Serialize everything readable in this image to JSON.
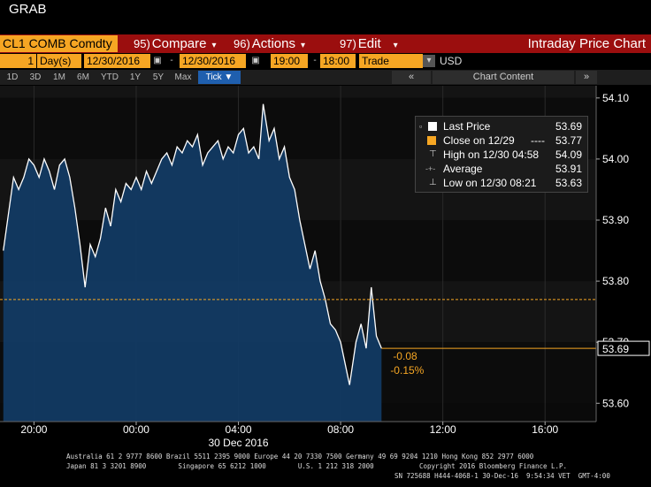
{
  "header": {
    "grab_label": "GRAB"
  },
  "toolbar": {
    "security": "CL1 COMB Comdty",
    "compare_num": "95)",
    "compare_label": "Compare",
    "actions_num": "96)",
    "actions_label": "Actions",
    "edit_num": "97)",
    "edit_label": "Edit",
    "title": "Intraday Price Chart"
  },
  "settings": {
    "period_value": "1",
    "period_unit": "Day(s)",
    "start_date": "12/30/2016",
    "end_date": "12/30/2016",
    "start_time": "19:00",
    "end_time": "18:00",
    "event": "Trade",
    "currency": "USD"
  },
  "ranges": {
    "items": [
      "1D",
      "3D",
      "1M",
      "6M",
      "YTD",
      "1Y",
      "5Y",
      "Max",
      "Tick ▼"
    ],
    "selected": "Tick ▼",
    "collapse_left": "«",
    "collapse_right": "»",
    "chart_content": "Chart Content"
  },
  "legend": {
    "last_price": {
      "label": "Last Price",
      "value": "53.69"
    },
    "close": {
      "label": "Close on 12/29",
      "dashes": "----",
      "value": "53.77"
    },
    "high": {
      "label": "High on 12/30 04:58",
      "value": "54.09"
    },
    "average": {
      "label": "Average",
      "value": "53.91"
    },
    "low": {
      "label": "Low on 12/30 08:21",
      "value": "53.63"
    }
  },
  "annotations": {
    "change": "-0.08",
    "change_pct": "-0.15%",
    "last_tag": "53.69"
  },
  "colors": {
    "accent_orange": "#f6a623",
    "toolbar_red": "#9b0e0e",
    "area_fill": "#123a63",
    "line": "#ffffff",
    "close_line": "#f6a623"
  },
  "chart_data": {
    "type": "area",
    "title": "Intraday Price Chart",
    "x_axis_date": "30 Dec 2016",
    "x_tick_labels": [
      "20:00",
      "00:00",
      "04:00",
      "08:00",
      "12:00",
      "16:00"
    ],
    "y_tick_labels": [
      "54.10",
      "54.00",
      "53.90",
      "53.80",
      "53.70",
      "53.60"
    ],
    "ylim": [
      53.57,
      54.12
    ],
    "x_range_hours": [
      -5.33,
      18.0
    ],
    "previous_close": 53.77,
    "last_price": 53.69,
    "series": [
      {
        "x_hours": [
          -5.2,
          -5.0,
          -4.8,
          -4.6,
          -4.4,
          -4.2,
          -4.0,
          -3.8,
          -3.6,
          -3.4,
          -3.2,
          -3.0,
          -2.8,
          -2.6,
          -2.4,
          -2.2,
          -2.0,
          -1.8,
          -1.6,
          -1.4,
          -1.2,
          -1.0,
          -0.8,
          -0.6,
          -0.4,
          -0.2,
          0.0,
          0.2,
          0.4,
          0.6,
          0.8,
          1.0,
          1.2,
          1.4,
          1.6,
          1.8,
          2.0,
          2.2,
          2.4,
          2.6,
          2.8,
          3.0,
          3.2,
          3.4,
          3.6,
          3.8,
          4.0,
          4.2,
          4.4,
          4.6,
          4.8,
          4.97,
          5.2,
          5.4,
          5.6,
          5.8,
          6.0,
          6.2,
          6.4,
          6.6,
          6.8,
          7.0,
          7.2,
          7.4,
          7.6,
          7.8,
          8.0,
          8.2,
          8.35,
          8.6,
          8.8,
          9.0,
          9.2,
          9.4,
          9.6
        ],
        "values": [
          53.85,
          53.91,
          53.97,
          53.95,
          53.97,
          54.0,
          53.99,
          53.97,
          54.0,
          53.98,
          53.95,
          53.99,
          54.0,
          53.97,
          53.92,
          53.86,
          53.79,
          53.86,
          53.84,
          53.87,
          53.92,
          53.89,
          53.95,
          53.93,
          53.96,
          53.95,
          53.97,
          53.95,
          53.98,
          53.96,
          53.98,
          54.0,
          54.01,
          53.99,
          54.02,
          54.01,
          54.03,
          54.02,
          54.04,
          53.99,
          54.01,
          54.02,
          54.03,
          54.0,
          54.02,
          54.01,
          54.04,
          54.05,
          54.01,
          54.02,
          54.0,
          54.09,
          54.03,
          54.05,
          54.0,
          54.02,
          53.97,
          53.95,
          53.9,
          53.86,
          53.82,
          53.85,
          53.8,
          53.77,
          53.73,
          53.72,
          53.7,
          53.66,
          53.63,
          53.7,
          53.73,
          53.69,
          53.79,
          53.71,
          53.69
        ]
      }
    ]
  },
  "footer": {
    "line1": "Australia 61 2 9777 8600 Brazil 5511 2395 9000 Europe 44 20 7330 7500 Germany 49 69 9204 1210 Hong Kong 852 2977 6000",
    "line2_left": "Japan 81 3 3201 8900        Singapore 65 6212 1000        U.S. 1 212 318 2000",
    "line2_right": "Copyright 2016 Bloomberg Finance L.P.",
    "line3": "SN 725688 H444-4068-1 30-Dec-16  9:54:34 VET  GMT-4:00"
  }
}
